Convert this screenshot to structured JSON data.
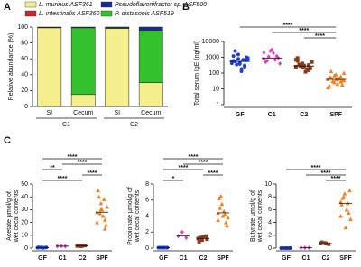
{
  "chart_data": [
    {
      "type": "stacked-bar",
      "panel": "A",
      "ylabel": "Relative abundance (%)",
      "categories": [
        "SI",
        "Cecum",
        "SI",
        "Cecum"
      ],
      "group_labels": [
        "C1",
        "C2"
      ],
      "ylim": [
        0,
        100
      ],
      "yticks": [
        0,
        20,
        40,
        60,
        80,
        100
      ],
      "series": [
        {
          "name": "L. murinus ASF361",
          "color": "#f4ee8c",
          "values": [
            99,
            15,
            98,
            30
          ]
        },
        {
          "name": "L. intestinalis ASF360",
          "color": "#c62828",
          "values": [
            0.5,
            0,
            0,
            0
          ]
        },
        {
          "name": "P. distasonis ASF519",
          "color": "#33c12d",
          "values": [
            0,
            84,
            1,
            66
          ]
        },
        {
          "name": "Pseudoflavonifractor sp. ASF500",
          "color": "#1a2a9e",
          "values": [
            0.5,
            1,
            1,
            4
          ]
        }
      ]
    },
    {
      "type": "dotplot",
      "panel": "B",
      "ylabel": [
        "Total serum IgE (ng/ml)"
      ],
      "log_y": true,
      "categories": [
        "GF",
        "C1",
        "C2",
        "SPF"
      ],
      "colors": [
        "#1f3fd8",
        "#e040c0",
        "#8b3a1a",
        "#f08020"
      ],
      "markers": [
        "circle",
        "diamond",
        "square",
        "triangle"
      ],
      "ylim": [
        1,
        10000
      ],
      "yticks": [
        1,
        10,
        100,
        1000,
        10000
      ],
      "points": [
        [
          520,
          800,
          300,
          1200,
          450,
          650,
          2500,
          180,
          900,
          350,
          700,
          420,
          1500,
          250,
          600,
          380,
          1000,
          550,
          130,
          750
        ],
        [
          800,
          2500,
          1200,
          500,
          3000,
          900,
          600,
          1800,
          400,
          1100,
          700,
          2000
        ],
        [
          250,
          400,
          150,
          600,
          300,
          200,
          350,
          120,
          500,
          280,
          180,
          700,
          230,
          320,
          900,
          260
        ],
        [
          40,
          25,
          60,
          15,
          80,
          35,
          50,
          20,
          100,
          30,
          45,
          12,
          70,
          28,
          55,
          38,
          18,
          130,
          42,
          33
        ]
      ],
      "medians": [
        550,
        900,
        280,
        40
      ],
      "comparisons": [
        {
          "a": "C2",
          "b": "SPF",
          "label": "****"
        },
        {
          "a": "C1",
          "b": "SPF",
          "label": "****"
        },
        {
          "a": "GF",
          "b": "SPF",
          "label": "****"
        }
      ]
    },
    {
      "type": "dotplot",
      "panel": "C",
      "ylabel": [
        "Acetate μmol/g of",
        "wet cecal contents"
      ],
      "log_y": false,
      "categories": [
        "GF",
        "C1",
        "C2",
        "SPF"
      ],
      "colors": [
        "#1f3fd8",
        "#e040c0",
        "#8b3a1a",
        "#f08020"
      ],
      "markers": [
        "circle",
        "diamond",
        "square",
        "triangle"
      ],
      "ylim": [
        0,
        50
      ],
      "yticks": [
        0,
        10,
        20,
        30,
        40,
        50
      ],
      "points": [
        [
          0.3,
          0.5,
          0.4,
          0.6,
          0.2,
          0.5,
          0.4,
          0.3
        ],
        [
          1.5,
          1.6,
          1.4
        ],
        [
          1.8,
          1.5,
          2.0,
          1.6,
          1.7
        ],
        [
          28,
          35,
          22,
          45,
          30,
          18,
          40,
          25,
          32,
          27,
          38,
          20,
          30,
          15
        ]
      ],
      "medians": [
        0.4,
        1.5,
        1.7,
        28
      ],
      "comparisons": [
        {
          "a": "GF",
          "b": "C2",
          "label": "****"
        },
        {
          "a": "C2",
          "b": "SPF",
          "label": "****"
        },
        {
          "a": "GF",
          "b": "C1",
          "label": "**"
        },
        {
          "a": "C1",
          "b": "SPF",
          "label": "****"
        },
        {
          "a": "GF",
          "b": "SPF",
          "label": "****"
        }
      ]
    },
    {
      "type": "dotplot",
      "ylabel": [
        "Propionate μmol/g of",
        "wet cecal contents"
      ],
      "log_y": false,
      "categories": [
        "GF",
        "C1",
        "C2",
        "SPF"
      ],
      "colors": [
        "#1f3fd8",
        "#e040c0",
        "#8b3a1a",
        "#f08020"
      ],
      "markers": [
        "circle",
        "diamond",
        "square",
        "triangle"
      ],
      "ylim": [
        0,
        8
      ],
      "yticks": [
        0,
        2,
        4,
        6,
        8
      ],
      "points": [
        [
          0.05,
          0.05,
          0.05,
          0.05,
          0.05,
          0.05,
          0.05,
          0.05
        ],
        [
          1.5,
          2.0,
          1.3
        ],
        [
          1.2,
          1.0,
          1.5,
          0.8,
          1.4,
          1.1,
          1.3
        ],
        [
          4.4,
          5.5,
          3.2,
          6.2,
          4.0,
          2.8,
          5.0,
          4.6,
          3.8,
          6.5,
          4.2,
          3.5
        ]
      ],
      "medians": [
        0.05,
        1.5,
        1.2,
        4.4
      ],
      "comparisons": [
        {
          "a": "GF",
          "b": "C1",
          "label": "*"
        },
        {
          "a": "C2",
          "b": "SPF",
          "label": "****"
        },
        {
          "a": "GF",
          "b": "C2",
          "label": "****"
        },
        {
          "a": "C1",
          "b": "SPF",
          "label": "****"
        },
        {
          "a": "GF",
          "b": "SPF",
          "label": "****"
        }
      ]
    },
    {
      "type": "dotplot",
      "ylabel": [
        "Butyrate μmol/g of",
        "wet cecal contents"
      ],
      "log_y": false,
      "categories": [
        "GF",
        "C1",
        "C2",
        "SPF"
      ],
      "colors": [
        "#1f3fd8",
        "#e040c0",
        "#8b3a1a",
        "#f08020"
      ],
      "markers": [
        "circle",
        "diamond",
        "square",
        "triangle"
      ],
      "ylim": [
        0,
        10
      ],
      "yticks": [
        0,
        2,
        4,
        6,
        8,
        10
      ],
      "points": [
        [
          0,
          0,
          0,
          0,
          0,
          0,
          0,
          0
        ],
        [
          0.05,
          0.05,
          0.05
        ],
        [
          0.7,
          0.8,
          0.6,
          0.9,
          0.7
        ],
        [
          7.2,
          8.5,
          5.5,
          6.8,
          3.2,
          9,
          7.8,
          6,
          4.5,
          8,
          7,
          5
        ]
      ],
      "medians": [
        0,
        0.05,
        0.7,
        7
      ],
      "comparisons": [
        {
          "a": "C2",
          "b": "SPF",
          "label": "****"
        },
        {
          "a": "C1",
          "b": "SPF",
          "label": "****"
        },
        {
          "a": "GF",
          "b": "SPF",
          "label": "****"
        }
      ]
    }
  ]
}
